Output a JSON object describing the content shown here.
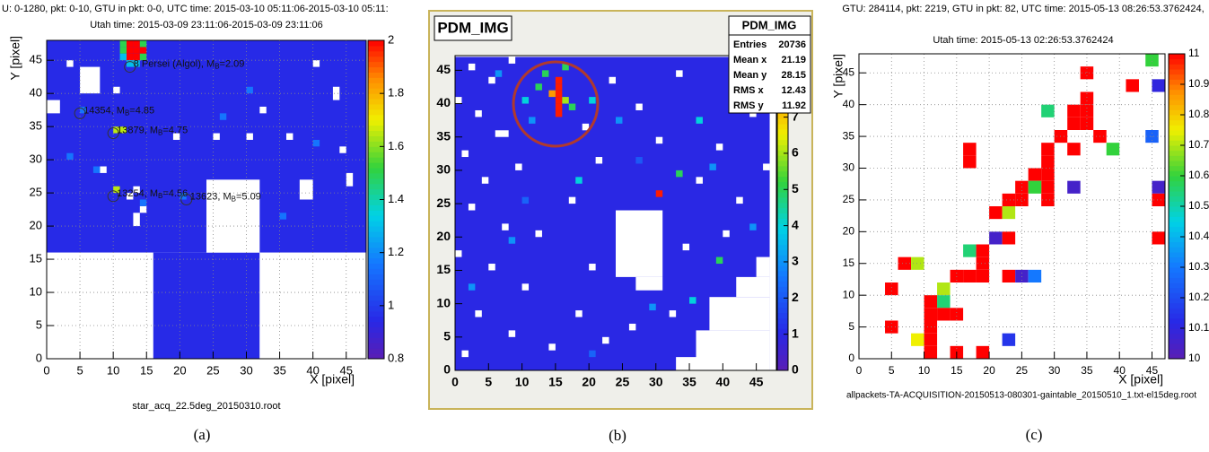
{
  "chart_data": [
    {
      "type": "heatmap",
      "header": [
        "U: 0-1280, pkt: 0-10, GTU in pkt: 0-0, UTC time: 2015-03-10 05:11:06-2015-03-10 05:11:",
        "Utah time: 2015-03-09 23:11:06-2015-03-09 23:11:06"
      ],
      "xlabel": "X [pixel]",
      "ylabel": "Y [pixel]",
      "footer": "star_acq_22.5deg_20150310.root",
      "caption": "(a)",
      "xlim": [
        0,
        48
      ],
      "ylim": [
        0,
        48
      ],
      "xticks": [
        0,
        5,
        10,
        15,
        20,
        25,
        30,
        35,
        40,
        45
      ],
      "yticks": [
        0,
        5,
        10,
        15,
        20,
        25,
        30,
        35,
        40,
        45
      ],
      "zlim": [
        0.8,
        2
      ],
      "zticks": [
        0.8,
        1,
        1.2,
        1.4,
        1.6,
        1.8,
        2
      ],
      "grid": true,
      "regions": [
        [
          0,
          16,
          48,
          48,
          0.95
        ],
        [
          16,
          0,
          32,
          16,
          0.95
        ]
      ],
      "empty": [
        [
          24,
          16,
          32,
          27
        ],
        [
          0,
          0,
          16,
          16
        ],
        [
          32,
          0,
          48,
          16
        ],
        [
          5,
          40,
          8,
          44
        ],
        [
          0,
          37,
          2,
          39
        ],
        [
          13,
          20,
          14,
          22
        ],
        [
          14,
          22,
          15,
          23
        ],
        [
          19,
          33,
          20,
          34
        ],
        [
          25,
          33,
          26,
          34
        ],
        [
          30,
          33,
          31,
          34
        ],
        [
          36,
          33,
          37,
          34
        ],
        [
          32,
          37,
          33,
          38
        ],
        [
          43,
          39,
          44,
          41
        ],
        [
          45,
          26,
          46,
          28
        ],
        [
          44,
          31,
          45,
          32
        ],
        [
          12,
          24,
          13,
          25
        ],
        [
          8,
          28,
          9,
          29
        ],
        [
          10,
          40,
          11,
          41
        ],
        [
          3,
          44,
          4,
          45
        ],
        [
          40,
          44,
          41,
          45
        ],
        [
          38,
          24,
          40,
          27
        ],
        [
          13,
          25,
          14,
          26
        ]
      ],
      "cell_size": 1,
      "cells": {
        "x": [
          12,
          13,
          12,
          13,
          14,
          12,
          13,
          11,
          11,
          14,
          14,
          10,
          10,
          11,
          12,
          13,
          11,
          5,
          20,
          14,
          3,
          30,
          40,
          7,
          35,
          26
        ],
        "y": [
          45,
          45,
          46,
          46,
          46,
          47,
          47,
          46,
          47,
          47,
          45,
          34,
          25,
          34,
          44,
          44,
          45,
          37,
          24,
          23,
          30,
          40,
          32,
          28,
          21,
          36
        ],
        "values": [
          2,
          2,
          2,
          2,
          2,
          2,
          2,
          1.5,
          1.5,
          1.5,
          1.5,
          1.65,
          1.65,
          1.65,
          1.3,
          1.3,
          1.3,
          1.15,
          1.15,
          1.15,
          1.15,
          1.15,
          1.15,
          1.15,
          1.15,
          1.15
        ]
      },
      "annotations": [
        {
          "x": 12.5,
          "y": 44,
          "label": "8 Persei (Algol), M",
          "sub": "B",
          "suffix": "=2.09"
        },
        {
          "x": 5,
          "y": 37,
          "label": "14354, M",
          "sub": "B",
          "suffix": "=4.85"
        },
        {
          "x": 10,
          "y": 34,
          "label": "13879, M",
          "sub": "B",
          "suffix": "=4.75"
        },
        {
          "x": 10,
          "y": 24.5,
          "label": "13254, M",
          "sub": "B",
          "suffix": "=4.56"
        },
        {
          "x": 21,
          "y": 24,
          "label": "13623, M",
          "sub": "B",
          "suffix": "=5.09"
        }
      ]
    },
    {
      "type": "heatmap",
      "title": "PDM_IMG",
      "caption": "(b)",
      "xlim": [
        0,
        48
      ],
      "ylim": [
        0,
        47.2
      ],
      "xticks": [
        0,
        5,
        10,
        15,
        20,
        25,
        30,
        35,
        40,
        45
      ],
      "yticks": [
        0,
        5,
        10,
        15,
        20,
        25,
        30,
        35,
        40,
        45
      ],
      "zlim": [
        0,
        8.7
      ],
      "zticks": [
        0,
        1,
        2,
        3,
        4,
        5,
        6,
        7,
        8
      ],
      "grid": false,
      "regions": [
        [
          0,
          0,
          47,
          47,
          1
        ]
      ],
      "empty": [
        [
          24,
          14,
          31,
          24
        ],
        [
          27,
          12,
          31,
          14
        ],
        [
          36,
          0,
          47,
          6
        ],
        [
          38,
          6,
          47,
          11
        ],
        [
          42,
          11,
          47,
          14
        ],
        [
          33,
          0,
          36,
          2
        ],
        [
          45,
          14,
          47,
          17
        ],
        [
          2,
          45,
          3,
          46
        ],
        [
          5,
          43,
          6,
          44
        ],
        [
          8,
          46,
          9,
          47
        ],
        [
          0,
          40,
          1,
          41
        ],
        [
          3,
          38,
          4,
          39
        ],
        [
          6,
          35,
          8,
          36
        ],
        [
          1,
          32,
          2,
          33
        ],
        [
          4,
          28,
          5,
          29
        ],
        [
          9,
          30,
          10,
          31
        ],
        [
          2,
          24,
          3,
          25
        ],
        [
          7,
          21,
          8,
          22
        ],
        [
          0,
          17,
          1,
          18
        ],
        [
          5,
          15,
          6,
          16
        ],
        [
          10,
          12,
          11,
          13
        ],
        [
          3,
          8,
          4,
          9
        ],
        [
          8,
          5,
          9,
          6
        ],
        [
          1,
          2,
          2,
          3
        ],
        [
          14,
          3,
          15,
          4
        ],
        [
          18,
          8,
          19,
          9
        ],
        [
          20,
          15,
          21,
          16
        ],
        [
          17,
          25,
          18,
          26
        ],
        [
          21,
          31,
          22,
          32
        ],
        [
          19,
          36,
          20,
          37
        ],
        [
          23,
          43,
          24,
          44
        ],
        [
          27,
          39,
          28,
          40
        ],
        [
          30,
          34,
          31,
          35
        ],
        [
          33,
          44,
          34,
          45
        ],
        [
          36,
          28,
          37,
          29
        ],
        [
          39,
          33,
          40,
          34
        ],
        [
          42,
          25,
          43,
          26
        ],
        [
          44,
          38,
          45,
          39
        ],
        [
          40,
          20,
          41,
          21
        ],
        [
          34,
          18,
          35,
          19
        ],
        [
          32,
          8,
          33,
          9
        ],
        [
          22,
          4,
          23,
          5
        ],
        [
          12,
          20,
          13,
          21
        ],
        [
          26,
          6,
          27,
          7
        ],
        [
          46,
          30,
          47,
          31
        ]
      ],
      "cell_size": 1,
      "cells": {
        "x": [
          15,
          15,
          15,
          15,
          15,
          15,
          14,
          16,
          12,
          17,
          10,
          13,
          16,
          11,
          30,
          33,
          36,
          6,
          20,
          24,
          39,
          35,
          29,
          8,
          18,
          44,
          2,
          27,
          10,
          42,
          20,
          38
        ],
        "y": [
          38,
          39,
          40,
          41,
          42,
          43,
          41,
          40,
          42,
          39,
          40,
          44,
          45,
          37,
          26,
          29,
          37,
          44,
          40,
          37,
          16,
          10,
          9,
          19,
          28,
          21,
          12,
          31,
          25,
          42,
          2,
          30
        ],
        "values": [
          8.5,
          8.5,
          8.5,
          8.5,
          8.5,
          8.5,
          7.5,
          6,
          5,
          5,
          4,
          5,
          5,
          3,
          8.5,
          5,
          4,
          3,
          4,
          3,
          5,
          4,
          3,
          3,
          4,
          3,
          3,
          2,
          2.2,
          2.2,
          2.2,
          3
        ]
      },
      "stats": {
        "title": "PDM_IMG",
        "rows": [
          [
            "Entries",
            20736
          ],
          [
            "Mean x",
            21.19
          ],
          [
            "Mean y",
            28.15
          ],
          [
            "RMS x",
            12.43
          ],
          [
            "RMS y",
            11.92
          ]
        ]
      }
    },
    {
      "type": "heatmap",
      "header": [
        "GTU: 284114, pkt: 2219, GTU in pkt: 82, UTC time: 2015-05-13 08:26:53.3762424,",
        "Utah time: 2015-05-13 02:26:53.3762424"
      ],
      "xlabel": "X [pixel]",
      "ylabel": "Y [pixel]",
      "footer": "allpackets-TA-ACQUISITION-20150513-080301-gaintable_20150510_1.txt-el15deg.root",
      "caption": "(c)",
      "xlim": [
        0,
        47
      ],
      "ylim": [
        0,
        48
      ],
      "xticks": [
        0,
        5,
        10,
        15,
        20,
        25,
        30,
        35,
        40,
        45
      ],
      "yticks": [
        0,
        5,
        10,
        15,
        20,
        25,
        30,
        35,
        40,
        45
      ],
      "zlim": [
        10,
        11
      ],
      "zticks": [
        10,
        10.1,
        10.2,
        10.3,
        10.4,
        10.5,
        10.6,
        10.7,
        10.8,
        10.9,
        11
      ],
      "grid": true,
      "regions": [],
      "empty": [],
      "cell_size": 2,
      "cells": {
        "x": [
          44,
          41,
          45,
          34,
          34,
          32,
          34,
          28,
          34,
          36,
          30,
          32,
          38,
          32,
          28,
          28,
          26,
          28,
          24,
          28,
          26,
          32,
          44,
          45,
          45,
          22,
          24,
          28,
          20,
          22,
          16,
          16,
          20,
          22,
          45,
          16,
          18,
          18,
          18,
          6,
          8,
          14,
          16,
          22,
          24,
          26,
          4,
          12,
          12,
          10,
          14,
          12,
          10,
          4,
          10,
          8,
          10,
          22,
          10,
          14,
          18
        ],
        "y": [
          46,
          42,
          42,
          44,
          40,
          38,
          38,
          38,
          36,
          34,
          34,
          36,
          32,
          32,
          32,
          30,
          28,
          28,
          26,
          26,
          26,
          26,
          34,
          26,
          24,
          24,
          24,
          24,
          22,
          22,
          32,
          30,
          18,
          18,
          18,
          16,
          16,
          14,
          12,
          14,
          14,
          12,
          12,
          12,
          12,
          12,
          10,
          10,
          8,
          8,
          6,
          6,
          6,
          4,
          4,
          2,
          2,
          2,
          0,
          0,
          0
        ],
        "values": [
          10.6,
          11,
          10.1,
          11,
          11,
          11,
          11,
          10.55,
          11,
          11,
          11,
          11,
          10.6,
          11,
          11,
          11,
          11,
          11,
          11,
          11,
          10.6,
          10.05,
          10.25,
          10.05,
          11,
          11,
          11,
          11,
          11,
          10.7,
          11,
          11,
          10.05,
          11,
          11,
          10.55,
          11,
          11,
          11,
          11,
          10.7,
          11,
          11,
          11,
          10.05,
          10.3,
          11,
          10.7,
          10.55,
          11,
          11,
          11,
          11,
          11,
          11,
          10.75,
          11,
          10.15,
          11,
          11,
          11
        ]
      }
    }
  ]
}
